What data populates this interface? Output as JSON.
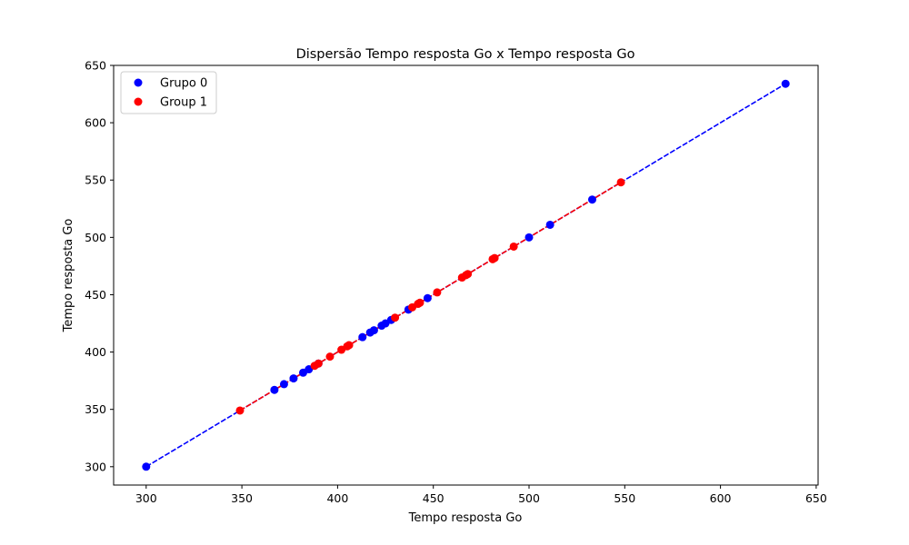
{
  "chart_data": {
    "type": "scatter",
    "title": "Dispersão Tempo resposta Go x Tempo resposta Go",
    "xlabel": "Tempo resposta Go",
    "ylabel": "Tempo resposta Go",
    "xlim": [
      283,
      651
    ],
    "ylim": [
      284,
      650
    ],
    "xticks": [
      300,
      350,
      400,
      450,
      500,
      550,
      600,
      650
    ],
    "yticks": [
      300,
      350,
      400,
      450,
      500,
      550,
      600,
      650
    ],
    "grid": false,
    "legend_position": "top-left",
    "series": [
      {
        "name": "Grupo 0",
        "color": "#0000ff",
        "fit_line": {
          "style": "dashed",
          "x": [
            300,
            634
          ]
        },
        "x": [
          300,
          367,
          372,
          377,
          382,
          385,
          390,
          413,
          417,
          419,
          423,
          425,
          428,
          437,
          447,
          500,
          511,
          533,
          634
        ],
        "y": [
          300,
          367,
          372,
          377,
          382,
          385,
          390,
          413,
          417,
          419,
          423,
          425,
          428,
          437,
          447,
          500,
          511,
          533,
          634
        ]
      },
      {
        "name": "Group 1",
        "color": "#ff0000",
        "fit_line": {
          "style": "dashed",
          "x": [
            349,
            548
          ]
        },
        "x": [
          349,
          388,
          390,
          396,
          402,
          405,
          406,
          430,
          439,
          442,
          443,
          452,
          465,
          467,
          468,
          481,
          482,
          492,
          548
        ],
        "y": [
          349,
          388,
          390,
          396,
          402,
          405,
          406,
          430,
          439,
          442,
          443,
          452,
          465,
          467,
          468,
          481,
          482,
          492,
          548
        ]
      }
    ]
  }
}
